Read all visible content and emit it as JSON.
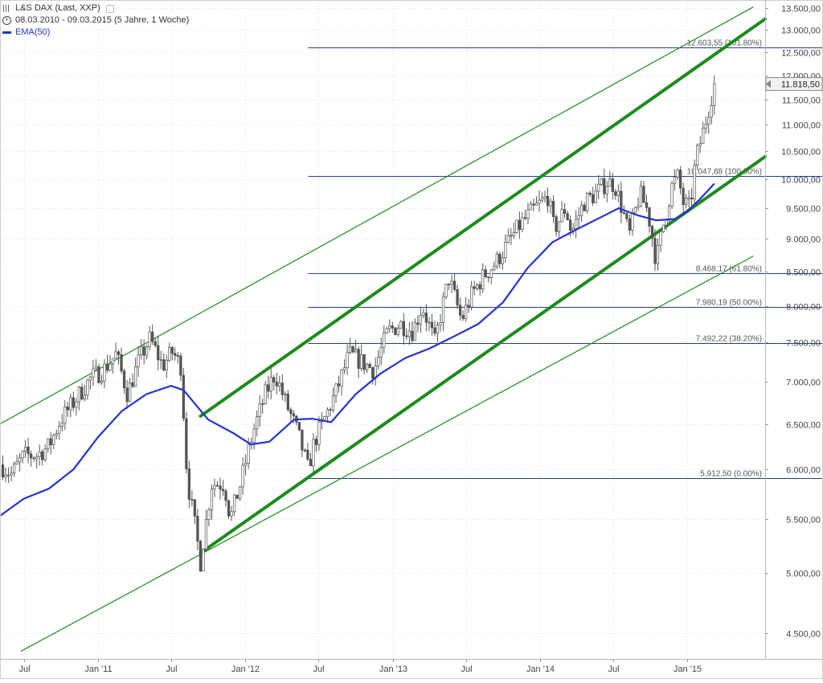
{
  "legend": {
    "instrument": "L&S DAX (Last, XXP)",
    "period": "08.03.2010 - 09.03.2015 (5 Jahre, 1 Woche)",
    "indicator": "EMA(50)"
  },
  "colors": {
    "candle": "#555555",
    "ema": "#2433cc",
    "channel": "#1d8a1d",
    "fib": "#2a3d8f",
    "grid": "#e3e3e3",
    "last_box": "#f2f2f2"
  },
  "chart_data": {
    "type": "candlestick",
    "title": "L&S DAX (Last, XXP)",
    "subtitle": "08.03.2010 - 09.03.2015 (5 Jahre, 1 Woche)",
    "y_scale": "log",
    "ylim": [
      4300,
      13700
    ],
    "xlim": [
      "2010-05-03",
      "2015-07-13"
    ],
    "y_ticks": [
      4500,
      5000,
      5500,
      6000,
      6500,
      7000,
      7500,
      8000,
      8500,
      9000,
      9500,
      10000,
      10500,
      11000,
      11500,
      12000,
      12500,
      13000,
      13500
    ],
    "y_tick_labels": [
      "4.500,00",
      "5.000,00",
      "5.500,00",
      "6.000,00",
      "6.500,00",
      "7.000,00",
      "7.500,00",
      "8.000,00",
      "8.500,00",
      "9.000,00",
      "9.500,00",
      "10.000,00",
      "10.500,00",
      "11.000,00",
      "11.500,00",
      "12.000,00",
      "12.500,00",
      "13.000,00",
      "13.500,00"
    ],
    "x_ticks": [
      {
        "date": "2010-07-01",
        "label": "Jul"
      },
      {
        "date": "2011-01-01",
        "label": "Jan '11"
      },
      {
        "date": "2011-07-01",
        "label": "Jul"
      },
      {
        "date": "2012-01-01",
        "label": "Jan '12"
      },
      {
        "date": "2012-07-01",
        "label": "Jul"
      },
      {
        "date": "2013-01-01",
        "label": "Jan '13"
      },
      {
        "date": "2013-07-01",
        "label": "Jul"
      },
      {
        "date": "2014-01-01",
        "label": "Jan '14"
      },
      {
        "date": "2014-07-01",
        "label": "Jul"
      },
      {
        "date": "2015-01-01",
        "label": "Jan '15"
      }
    ],
    "last_price": {
      "value": 11818.5,
      "label": "11.818,50"
    },
    "price_path": [
      [
        "2010-05-03",
        6050
      ],
      [
        "2010-06-01",
        5950
      ],
      [
        "2010-07-01",
        6150
      ],
      [
        "2010-08-01",
        6150
      ],
      [
        "2010-09-01",
        6250
      ],
      [
        "2010-10-01",
        6550
      ],
      [
        "2010-11-01",
        6750
      ],
      [
        "2010-12-15",
        7050
      ],
      [
        "2011-01-15",
        7150
      ],
      [
        "2011-02-15",
        7350
      ],
      [
        "2011-03-15",
        6850
      ],
      [
        "2011-04-15",
        7300
      ],
      [
        "2011-05-10",
        7550
      ],
      [
        "2011-06-10",
        7200
      ],
      [
        "2011-07-05",
        7380
      ],
      [
        "2011-07-25",
        7200
      ],
      [
        "2011-08-10",
        5900
      ],
      [
        "2011-09-12",
        5100
      ],
      [
        "2011-10-10",
        5850
      ],
      [
        "2011-11-10",
        5850
      ],
      [
        "2011-11-25",
        5500
      ],
      [
        "2011-12-20",
        5850
      ],
      [
        "2012-01-20",
        6400
      ],
      [
        "2012-02-20",
        6850
      ],
      [
        "2012-03-15",
        7100
      ],
      [
        "2012-04-10",
        6750
      ],
      [
        "2012-05-10",
        6400
      ],
      [
        "2012-06-05",
        6000
      ],
      [
        "2012-06-20",
        6300
      ],
      [
        "2012-07-15",
        6550
      ],
      [
        "2012-08-15",
        6900
      ],
      [
        "2012-09-15",
        7350
      ],
      [
        "2012-10-15",
        7250
      ],
      [
        "2012-11-15",
        7150
      ],
      [
        "2012-12-20",
        7650
      ],
      [
        "2013-01-20",
        7750
      ],
      [
        "2013-02-20",
        7650
      ],
      [
        "2013-03-15",
        8000
      ],
      [
        "2013-04-15",
        7500
      ],
      [
        "2013-05-20",
        8400
      ],
      [
        "2013-06-20",
        7800
      ],
      [
        "2013-07-15",
        8150
      ],
      [
        "2013-08-10",
        8400
      ],
      [
        "2013-09-15",
        8650
      ],
      [
        "2013-10-15",
        8950
      ],
      [
        "2013-11-15",
        9250
      ],
      [
        "2013-12-20",
        9500
      ],
      [
        "2014-01-20",
        9700
      ],
      [
        "2014-02-05",
        9150
      ],
      [
        "2014-03-05",
        9500
      ],
      [
        "2014-03-20",
        9100
      ],
      [
        "2014-04-20",
        9600
      ],
      [
        "2014-05-20",
        9750
      ],
      [
        "2014-06-15",
        9950
      ],
      [
        "2014-07-05",
        9900
      ],
      [
        "2014-07-25",
        9450
      ],
      [
        "2014-08-10",
        9050
      ],
      [
        "2014-09-05",
        9750
      ],
      [
        "2014-09-25",
        9450
      ],
      [
        "2014-10-16",
        8650
      ],
      [
        "2014-11-05",
        9300
      ],
      [
        "2014-11-25",
        9900
      ],
      [
        "2014-12-10",
        10050
      ],
      [
        "2014-12-20",
        9600
      ],
      [
        "2015-01-08",
        9500
      ],
      [
        "2015-01-22",
        10350
      ],
      [
        "2015-02-12",
        10950
      ],
      [
        "2015-03-09",
        11818
      ]
    ],
    "series": [
      {
        "name": "EMA(50)",
        "points": [
          [
            "2010-05-03",
            5530
          ],
          [
            "2010-07-01",
            5700
          ],
          [
            "2010-09-01",
            5800
          ],
          [
            "2010-11-01",
            6000
          ],
          [
            "2011-01-01",
            6350
          ],
          [
            "2011-03-01",
            6650
          ],
          [
            "2011-05-01",
            6850
          ],
          [
            "2011-07-01",
            6950
          ],
          [
            "2011-08-01",
            6900
          ],
          [
            "2011-10-01",
            6550
          ],
          [
            "2011-12-01",
            6400
          ],
          [
            "2012-01-15",
            6270
          ],
          [
            "2012-03-01",
            6300
          ],
          [
            "2012-05-01",
            6550
          ],
          [
            "2012-06-15",
            6560
          ],
          [
            "2012-08-01",
            6520
          ],
          [
            "2012-10-01",
            6850
          ],
          [
            "2012-12-01",
            7100
          ],
          [
            "2013-02-01",
            7300
          ],
          [
            "2013-04-01",
            7420
          ],
          [
            "2013-06-01",
            7580
          ],
          [
            "2013-08-01",
            7750
          ],
          [
            "2013-10-01",
            8050
          ],
          [
            "2013-12-01",
            8550
          ],
          [
            "2014-02-01",
            8950
          ],
          [
            "2014-04-01",
            9150
          ],
          [
            "2014-06-01",
            9350
          ],
          [
            "2014-07-15",
            9500
          ],
          [
            "2014-09-01",
            9380
          ],
          [
            "2014-10-15",
            9300
          ],
          [
            "2014-12-01",
            9320
          ],
          [
            "2015-01-01",
            9450
          ],
          [
            "2015-02-01",
            9650
          ],
          [
            "2015-03-09",
            9920
          ]
        ]
      }
    ],
    "fibonacci_levels": [
      {
        "value": 12603.55,
        "label": "12.603,55 (161.80%)"
      },
      {
        "value": 10047.88,
        "label": "10.047,88 (100.00%)"
      },
      {
        "value": 8468.17,
        "label": "8.468,17 (61.80%)"
      },
      {
        "value": 7980.19,
        "label": "7.980,19 (50.00%)"
      },
      {
        "value": 7492.22,
        "label": "7.492,22 (38.20%)"
      },
      {
        "value": 5912.5,
        "label": "5.912,50 (0.00%)"
      }
    ],
    "fib_start": "2012-06-05",
    "trend_lines": [
      {
        "role": "main-upper",
        "from": [
          "2011-09-12",
          6590
        ],
        "to": [
          "2015-07-13",
          13250
        ]
      },
      {
        "role": "main-lower",
        "from": [
          "2011-09-12",
          5180
        ],
        "to": [
          "2015-07-13",
          10400
        ]
      },
      {
        "role": "outer-upper",
        "from": [
          "2010-05-03",
          6500
        ],
        "to": [
          "2015-06-13",
          13530
        ]
      },
      {
        "role": "outer-lower",
        "from": [
          "2010-06-25",
          4360
        ],
        "to": [
          "2015-06-13",
          8730
        ]
      }
    ]
  }
}
